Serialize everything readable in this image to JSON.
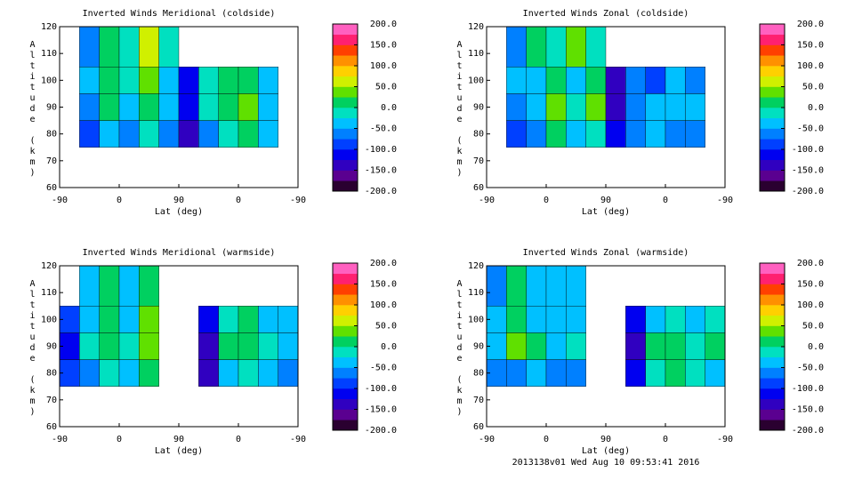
{
  "chart_data": [
    {
      "type": "heatmap",
      "title": "Inverted Winds Meridional (coldside)",
      "xlabel": "Lat (deg)",
      "ylabel": "Altitude (km)",
      "xlim": [
        0,
        360
      ],
      "xticks": [
        {
          "value": 0,
          "label": "-90"
        },
        {
          "value": 90,
          "label": "0"
        },
        {
          "value": 180,
          "label": "90"
        },
        {
          "value": 270,
          "label": "0"
        },
        {
          "value": 360,
          "label": "-90"
        }
      ],
      "ylim": [
        60,
        120
      ],
      "yticks": [
        60,
        70,
        80,
        90,
        100,
        110,
        120
      ],
      "x_edges": [
        0,
        30,
        60,
        90,
        120,
        150,
        180,
        210,
        240,
        270,
        300,
        330,
        360
      ],
      "y_edges": [
        75,
        85,
        95,
        105,
        120
      ],
      "z": [
        [
          null,
          -80,
          -40,
          -60,
          -20,
          -70,
          -140,
          -60,
          -20,
          10,
          -30,
          null
        ],
        [
          null,
          -60,
          0,
          -30,
          20,
          -40,
          -120,
          -10,
          20,
          40,
          -30,
          null
        ],
        [
          null,
          -50,
          10,
          -20,
          40,
          -30,
          -120,
          -10,
          10,
          20,
          -40,
          null
        ],
        [
          null,
          -70,
          20,
          -10,
          70,
          -20,
          null,
          null,
          null,
          null,
          null,
          null
        ]
      ],
      "clim": [
        -200,
        200
      ],
      "cticks": [
        {
          "value": 200,
          "label": "200.0"
        },
        {
          "value": 150,
          "label": "150.0"
        },
        {
          "value": 100,
          "label": "100.0"
        },
        {
          "value": 50,
          "label": "50.0"
        },
        {
          "value": 0,
          "label": "0.0"
        },
        {
          "value": -50,
          "label": "-50.0"
        },
        {
          "value": -100,
          "label": "-100.0"
        },
        {
          "value": -150,
          "label": "-150.0"
        },
        {
          "value": -200,
          "label": "-200.0"
        }
      ],
      "colors": [
        "#2a0030",
        "#5a0090",
        "#3000c0",
        "#0000f0",
        "#0040ff",
        "#0080ff",
        "#00c0ff",
        "#00e0c0",
        "#00d060",
        "#60e000",
        "#d0f000",
        "#ffd000",
        "#ff9000",
        "#ff4000",
        "#ff2070",
        "#ff60c0"
      ]
    },
    {
      "type": "heatmap",
      "title": "Inverted Winds Zonal (coldside)",
      "xlabel": "Lat (deg)",
      "ylabel": "Altitude (km)",
      "xlim": [
        0,
        360
      ],
      "xticks": [
        {
          "value": 0,
          "label": "-90"
        },
        {
          "value": 90,
          "label": "0"
        },
        {
          "value": 180,
          "label": "90"
        },
        {
          "value": 270,
          "label": "0"
        },
        {
          "value": 360,
          "label": "-90"
        }
      ],
      "ylim": [
        60,
        120
      ],
      "yticks": [
        60,
        70,
        80,
        90,
        100,
        110,
        120
      ],
      "x_edges": [
        0,
        30,
        60,
        90,
        120,
        150,
        180,
        210,
        240,
        270,
        300,
        330,
        360
      ],
      "y_edges": [
        75,
        85,
        95,
        105,
        120
      ],
      "z": [
        [
          null,
          -80,
          -60,
          20,
          -40,
          -20,
          -120,
          -60,
          -40,
          -60,
          -60,
          null
        ],
        [
          null,
          -60,
          -40,
          30,
          -20,
          30,
          -140,
          -60,
          -50,
          -40,
          -50,
          null
        ],
        [
          null,
          -50,
          -30,
          10,
          -30,
          10,
          -130,
          -60,
          -90,
          -50,
          -60,
          null
        ],
        [
          null,
          -60,
          20,
          -20,
          40,
          -20,
          null,
          null,
          null,
          null,
          null,
          null
        ]
      ],
      "clim": [
        -200,
        200
      ],
      "cticks": [
        {
          "value": 200,
          "label": "200.0"
        },
        {
          "value": 150,
          "label": "150.0"
        },
        {
          "value": 100,
          "label": "100.0"
        },
        {
          "value": 50,
          "label": "50.0"
        },
        {
          "value": 0,
          "label": "0.0"
        },
        {
          "value": -50,
          "label": "-50.0"
        },
        {
          "value": -100,
          "label": "-100.0"
        },
        {
          "value": -150,
          "label": "-150.0"
        },
        {
          "value": -200,
          "label": "-200.0"
        }
      ],
      "colors": [
        "#2a0030",
        "#5a0090",
        "#3000c0",
        "#0000f0",
        "#0040ff",
        "#0080ff",
        "#00c0ff",
        "#00e0c0",
        "#00d060",
        "#60e000",
        "#d0f000",
        "#ffd000",
        "#ff9000",
        "#ff4000",
        "#ff2070",
        "#ff60c0"
      ]
    },
    {
      "type": "heatmap",
      "title": "Inverted Winds Meridional (warmside)",
      "xlabel": "Lat (deg)",
      "ylabel": "Altitude (km)",
      "xlim": [
        0,
        360
      ],
      "xticks": [
        {
          "value": 0,
          "label": "-90"
        },
        {
          "value": 90,
          "label": "0"
        },
        {
          "value": 180,
          "label": "90"
        },
        {
          "value": 270,
          "label": "0"
        },
        {
          "value": 360,
          "label": "-90"
        }
      ],
      "ylim": [
        60,
        120
      ],
      "yticks": [
        60,
        70,
        80,
        90,
        100,
        110,
        120
      ],
      "x_edges": [
        0,
        30,
        60,
        90,
        120,
        150,
        180,
        210,
        240,
        270,
        300,
        330,
        360
      ],
      "y_edges": [
        75,
        85,
        95,
        105,
        120
      ],
      "z": [
        [
          -100,
          -60,
          -20,
          -30,
          10,
          null,
          null,
          -140,
          -30,
          -20,
          -50,
          -60
        ],
        [
          -120,
          -20,
          20,
          -20,
          40,
          null,
          null,
          -130,
          0,
          10,
          -10,
          -40
        ],
        [
          -100,
          -40,
          10,
          -30,
          30,
          null,
          null,
          -120,
          -20,
          0,
          -30,
          -50
        ],
        [
          null,
          -40,
          0,
          -40,
          20,
          null,
          null,
          null,
          null,
          null,
          null,
          null
        ]
      ],
      "clim": [
        -200,
        200
      ],
      "cticks": [
        {
          "value": 200,
          "label": "200.0"
        },
        {
          "value": 150,
          "label": "150.0"
        },
        {
          "value": 100,
          "label": "100.0"
        },
        {
          "value": 50,
          "label": "50.0"
        },
        {
          "value": 0,
          "label": "0.0"
        },
        {
          "value": -50,
          "label": "-50.0"
        },
        {
          "value": -100,
          "label": "-100.0"
        },
        {
          "value": -150,
          "label": "-150.0"
        },
        {
          "value": -200,
          "label": "-200.0"
        }
      ],
      "colors": [
        "#2a0030",
        "#5a0090",
        "#3000c0",
        "#0000f0",
        "#0040ff",
        "#0080ff",
        "#00c0ff",
        "#00e0c0",
        "#00d060",
        "#60e000",
        "#d0f000",
        "#ffd000",
        "#ff9000",
        "#ff4000",
        "#ff2070",
        "#ff60c0"
      ]
    },
    {
      "type": "heatmap",
      "title": "Inverted Winds Zonal (warmside)",
      "xlabel": "Lat (deg)",
      "ylabel": "Altitude (km)",
      "xlim": [
        0,
        360
      ],
      "xticks": [
        {
          "value": 0,
          "label": "-90"
        },
        {
          "value": 90,
          "label": "0"
        },
        {
          "value": 180,
          "label": "90"
        },
        {
          "value": 270,
          "label": "0"
        },
        {
          "value": 360,
          "label": "-90"
        }
      ],
      "ylim": [
        60,
        120
      ],
      "yticks": [
        60,
        70,
        80,
        90,
        100,
        110,
        120
      ],
      "x_edges": [
        0,
        30,
        60,
        90,
        120,
        150,
        180,
        210,
        240,
        270,
        300,
        330,
        360
      ],
      "y_edges": [
        75,
        85,
        95,
        105,
        120
      ],
      "z": [
        [
          -60,
          -60,
          -40,
          -60,
          -60,
          null,
          null,
          -120,
          -20,
          10,
          -20,
          -30
        ],
        [
          -50,
          30,
          0,
          -30,
          -20,
          null,
          null,
          -140,
          0,
          20,
          -10,
          20
        ],
        [
          -40,
          20,
          -30,
          -50,
          -40,
          null,
          null,
          -120,
          -30,
          -10,
          -50,
          -20
        ],
        [
          -60,
          20,
          -40,
          -30,
          -50,
          null,
          null,
          null,
          null,
          null,
          null,
          null
        ]
      ],
      "clim": [
        -200,
        200
      ],
      "cticks": [
        {
          "value": 200,
          "label": "200.0"
        },
        {
          "value": 150,
          "label": "150.0"
        },
        {
          "value": 100,
          "label": "100.0"
        },
        {
          "value": 50,
          "label": "50.0"
        },
        {
          "value": 0,
          "label": "0.0"
        },
        {
          "value": -50,
          "label": "-50.0"
        },
        {
          "value": -100,
          "label": "-100.0"
        },
        {
          "value": -150,
          "label": "-150.0"
        },
        {
          "value": -200,
          "label": "-200.0"
        }
      ],
      "colors": [
        "#2a0030",
        "#5a0090",
        "#3000c0",
        "#0000f0",
        "#0040ff",
        "#0080ff",
        "#00c0ff",
        "#00e0c0",
        "#00d060",
        "#60e000",
        "#d0f000",
        "#ffd000",
        "#ff9000",
        "#ff4000",
        "#ff2070",
        "#ff60c0"
      ]
    }
  ],
  "footer": "2013138v01 Wed Aug 10 09:53:41 2016"
}
